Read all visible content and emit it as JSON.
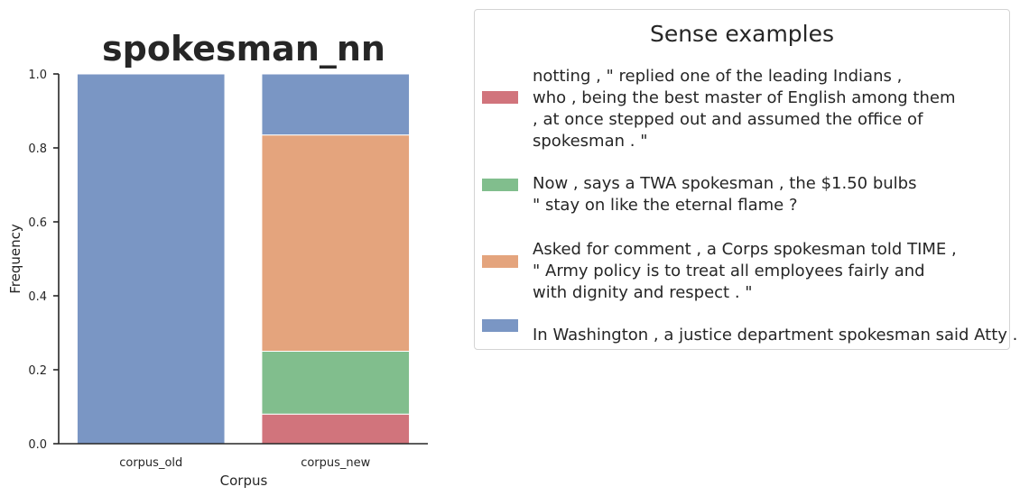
{
  "chart_data": {
    "type": "bar",
    "stacked": true,
    "title": "spokesman_nn",
    "xlabel": "Corpus",
    "ylabel": "Frequency",
    "ylim": [
      0,
      1.0
    ],
    "yticks": [
      "0.0",
      "0.2",
      "0.4",
      "0.6",
      "0.8",
      "1.0"
    ],
    "categories": [
      "corpus_old",
      "corpus_new"
    ],
    "series": [
      {
        "color": "#d1747c",
        "values": [
          0.0,
          0.08
        ]
      },
      {
        "color": "#81be8d",
        "values": [
          0.0,
          0.17
        ]
      },
      {
        "color": "#e4a47d",
        "values": [
          0.0,
          0.585
        ]
      },
      {
        "color": "#7a96c4",
        "values": [
          1.0,
          0.165
        ]
      }
    ],
    "grid": false,
    "legend_placement": "outside-right"
  },
  "legend": {
    "title": "Sense examples",
    "entries": [
      {
        "color": "#d1747c",
        "text": "notting , \" replied one of the leading Indians ,\nwho , being the best master of English among them\n, at once stepped out and assumed the office of\nspokesman . \""
      },
      {
        "color": "#81be8d",
        "text": "Now , says a TWA spokesman , the $1.50 bulbs\n\" stay on like the eternal flame ?"
      },
      {
        "color": "#e4a47d",
        "text": "Asked for comment , a Corps spokesman told TIME ,\n\" Army policy is to treat all employees fairly and\nwith dignity and respect . \""
      },
      {
        "color": "#7a96c4",
        "text": "\nIn Washington , a justice department spokesman said Atty ."
      }
    ]
  }
}
